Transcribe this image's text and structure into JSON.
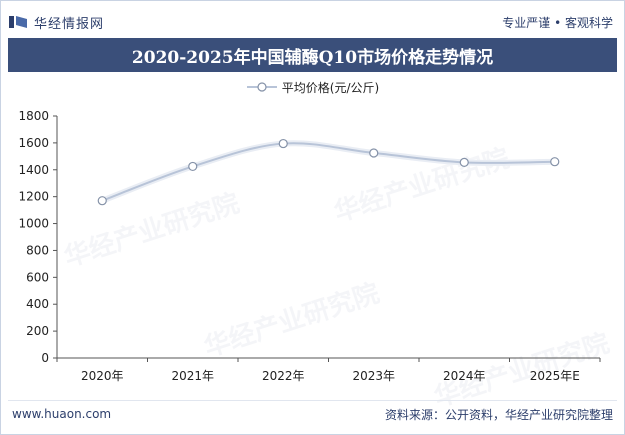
{
  "header": {
    "brand": "华经情报网",
    "slogan": "专业严谨 • 客观科学"
  },
  "title": "2020-2025年中国辅酶Q10市场价格走势情况",
  "footer": {
    "site": "www.huaon.com",
    "source": "资料来源：公开资料，华经产业研究院整理"
  },
  "watermark": "华经产业研究院",
  "colors": {
    "title_bg": "#3a4f7a",
    "line": "#b8c4d8",
    "brand": "#2c3e6b"
  },
  "chart_data": {
    "type": "line",
    "categories": [
      "2020年",
      "2021年",
      "2022年",
      "2023年",
      "2024年",
      "2025年E"
    ],
    "series": [
      {
        "name": "平均价格(元/公斤)",
        "values": [
          1170,
          1425,
          1595,
          1525,
          1455,
          1460
        ]
      }
    ],
    "ylim": [
      0,
      1800
    ],
    "yticks": [
      0,
      200,
      400,
      600,
      800,
      1000,
      1200,
      1400,
      1600,
      1800
    ],
    "grid": false,
    "legend": "top-center"
  }
}
